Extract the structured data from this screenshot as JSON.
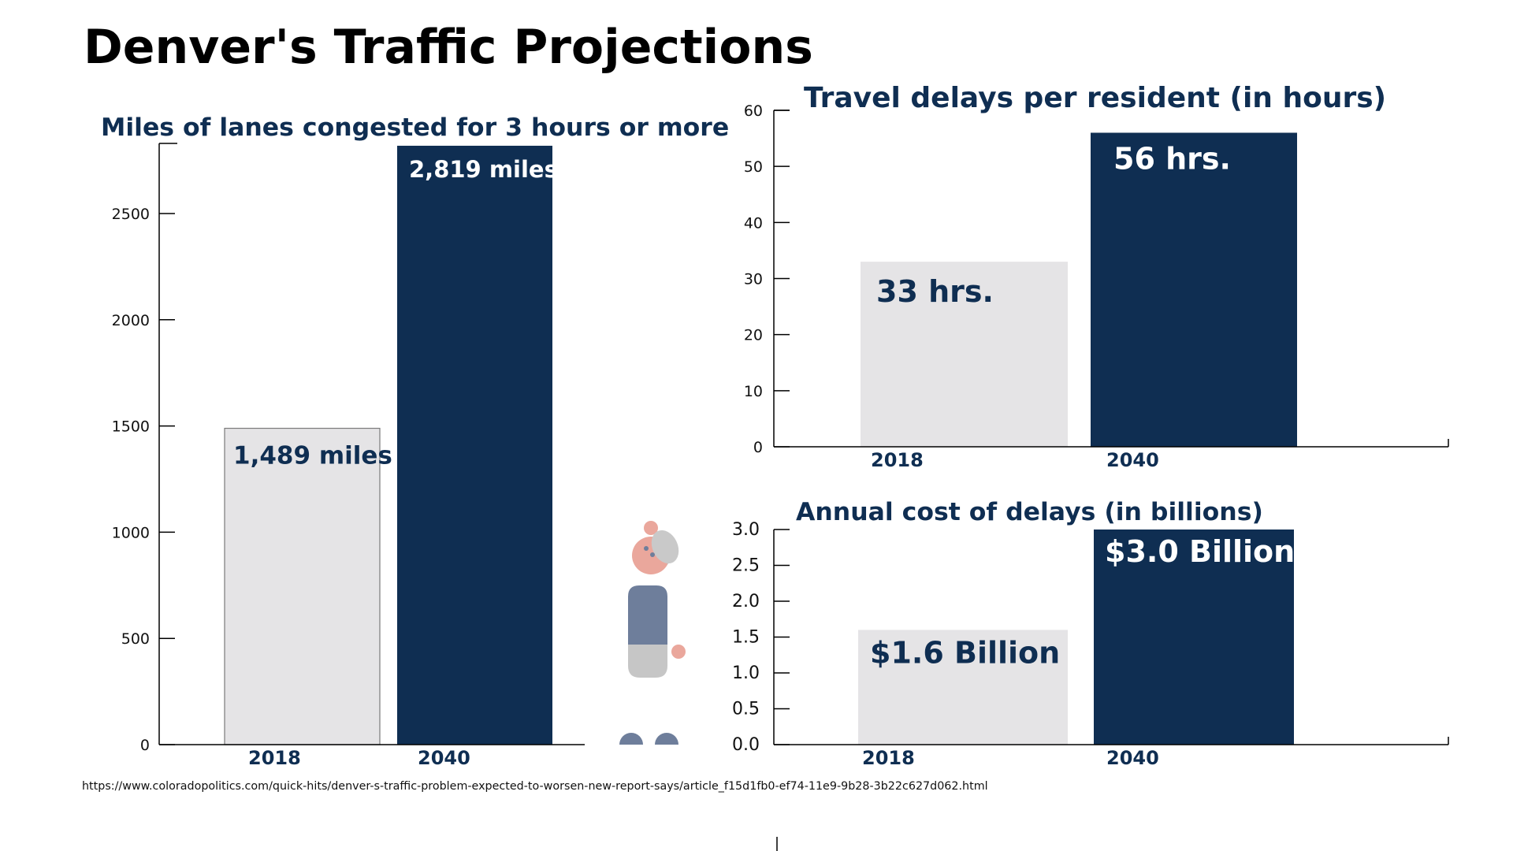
{
  "page": {
    "title": "Denver's Traffic Projections",
    "source": "https://www.coloradopolitics.com/quick-hits/denver-s-traffic-problem-expected-to-worsen-new-report-says/article_f15d1fb0-ef74-11e9-9b28-3b22c627d062.html"
  },
  "colors": {
    "navy": "#0f2e52",
    "light_bar": "#e5e4e6",
    "light_bar_outline": "#7a7a7a",
    "axis": "#000000",
    "title_text": "#0f2e52",
    "figure_head": "#eaa79c",
    "figure_hair": "#c9c9c9",
    "figure_body_top": "#6e7e9b",
    "figure_body_bottom": "#c6c6c6",
    "figure_feet": "#6e7e9b"
  },
  "decorations": {
    "person_icon": "person-icon"
  },
  "chart_data": [
    {
      "type": "bar",
      "title": "Miles of lanes congested for 3 hours or more",
      "categories": [
        "2018",
        "2040"
      ],
      "values": [
        1489,
        2819
      ],
      "value_labels": [
        "1,489 miles",
        "2,819 miles"
      ],
      "yticks": [
        0,
        500,
        1000,
        1500,
        2000,
        2500
      ],
      "ytick_labels": [
        "0",
        "500",
        "1000",
        "1500",
        "2000",
        "2500"
      ],
      "ylim": [
        0,
        2830
      ],
      "grid": false,
      "legend": "none"
    },
    {
      "type": "bar",
      "title": "Travel delays per resident (in hours)",
      "categories": [
        "2018",
        "2040"
      ],
      "values": [
        33,
        56
      ],
      "value_labels": [
        "33 hrs.",
        "56 hrs."
      ],
      "yticks": [
        0,
        10,
        20,
        30,
        40,
        50,
        60
      ],
      "ytick_labels": [
        "0",
        "10",
        "20",
        "30",
        "40",
        "50",
        "60"
      ],
      "ylim": [
        0,
        60
      ],
      "grid": false,
      "legend": "none"
    },
    {
      "type": "bar",
      "title": "Annual cost of delays (in billions)",
      "categories": [
        "2018",
        "2040"
      ],
      "values": [
        1.6,
        3.0
      ],
      "value_labels": [
        "$1.6 Billion",
        "$3.0 Billion"
      ],
      "yticks": [
        0,
        0.5,
        1.0,
        1.5,
        2.0,
        2.5,
        3.0
      ],
      "ytick_labels": [
        "0.0",
        "0.5",
        "1.0",
        "1.5",
        "2.0",
        "2.5",
        "3.0"
      ],
      "ylim": [
        0,
        3.0
      ],
      "grid": false,
      "legend": "none"
    }
  ]
}
